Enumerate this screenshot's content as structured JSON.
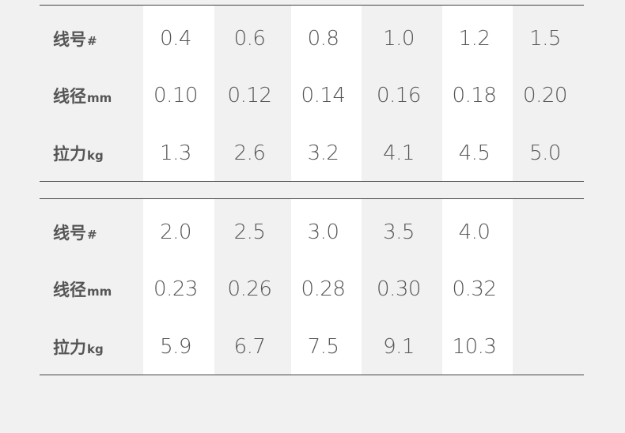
{
  "tables": [
    {
      "rows": [
        {
          "label": "线号",
          "unit": "#",
          "cells": [
            "0.4",
            "0.6",
            "0.8",
            "1.0",
            "1.2",
            "1.5"
          ]
        },
        {
          "label": "线径",
          "unit": "mm",
          "cells": [
            "0.10",
            "0.12",
            "0.14",
            "0.16",
            "0.18",
            "0.20"
          ]
        },
        {
          "label": "拉力",
          "unit": "kg",
          "cells": [
            "1.3",
            "2.6",
            "3.2",
            "4.1",
            "4.5",
            "5.0"
          ]
        }
      ]
    },
    {
      "rows": [
        {
          "label": "线号",
          "unit": "#",
          "cells": [
            "2.0",
            "2.5",
            "3.0",
            "3.5",
            "4.0"
          ]
        },
        {
          "label": "线径",
          "unit": "mm",
          "cells": [
            "0.23",
            "0.26",
            "0.28",
            "0.30",
            "0.32"
          ]
        },
        {
          "label": "拉力",
          "unit": "kg",
          "cells": [
            "5.9",
            "6.7",
            "7.5",
            "9.1",
            "10.3"
          ]
        }
      ]
    }
  ]
}
